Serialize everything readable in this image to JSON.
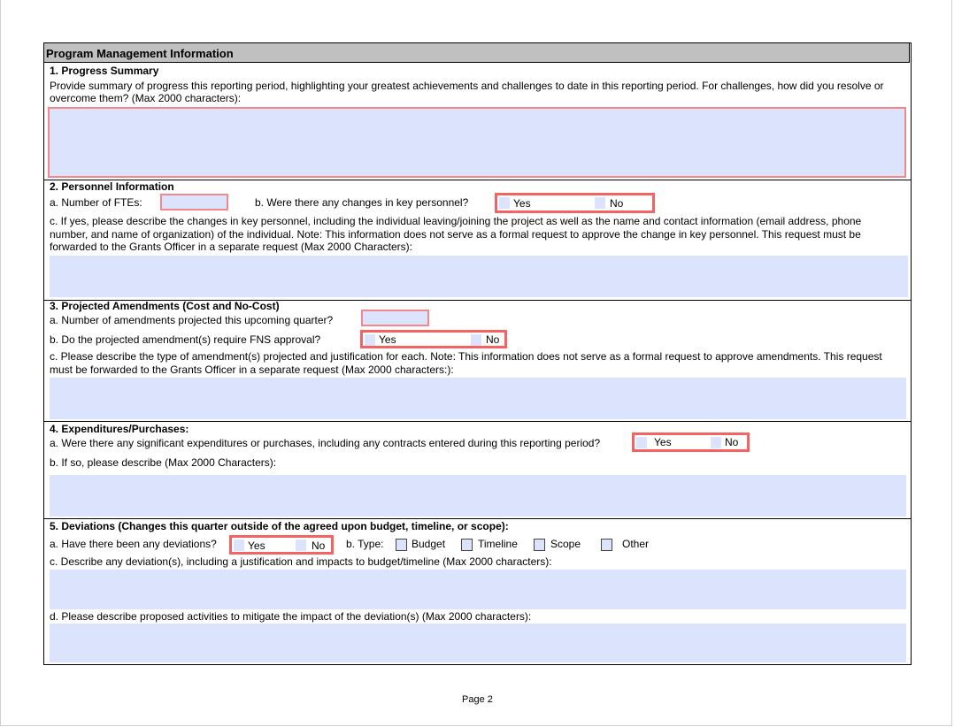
{
  "header": {
    "title": "Program Management Information"
  },
  "s1": {
    "title": "1. Progress Summary",
    "text1": "Provide summary of progress this reporting period, highlighting your greatest achievements and challenges to date in this reporting period. For challenges, how did you resolve or",
    "text2": "overcome them? (Max 2000 characters):"
  },
  "s2": {
    "title": "2. Personnel Information",
    "a": "a. Number of FTEs:",
    "b": "b. Were there any changes in key personnel?",
    "yes": "Yes",
    "no": "No",
    "c1": "c. If yes, please describe the changes in key personnel, including the individual leaving/joining the project as well as the name and contact information (email address, phone",
    "c2": "number, and name of organization) of the individual. Note: This information does not serve as a formal request to approve the change in key personnel. This request must be",
    "c3": "forwarded to the Grants Officer in a separate request (Max 2000 Characters):"
  },
  "s3": {
    "title": "3. Projected Amendments (Cost and No-Cost)",
    "a": "a. Number of amendments projected this upcoming quarter?",
    "b": "b. Do the projected amendment(s) require FNS approval?",
    "yes": "Yes",
    "no": "No",
    "c1": "c. Please describe the type of amendment(s) projected and justification for each. Note: This information does not serve as a formal request to approve amendments. This request",
    "c2": "must be forwarded to the Grants Officer in a separate request (Max 2000 characters:):"
  },
  "s4": {
    "title": "4. Expenditures/Purchases:",
    "a": "a. Were there any significant expenditures or purchases, including any contracts entered during this reporting period?",
    "yes": "Yes",
    "no": "No",
    "b": "b. If so, please describe (Max 2000 Characters):"
  },
  "s5": {
    "title": "5. Deviations (Changes this quarter outside of the agreed upon budget, timeline, or scope):",
    "a": "a. Have there been any deviations?",
    "yes": "Yes",
    "no": "No",
    "type": "b. Type:",
    "types": [
      "Budget",
      "Timeline",
      "Scope",
      "Other"
    ],
    "c": "c. Describe any deviation(s), including a justification and impacts to budget/timeline (Max 2000 characters):",
    "d": "d. Please describe proposed activities to mitigate the impact of the deviation(s) (Max 2000 characters):"
  },
  "footer": {
    "page": "Page 2"
  }
}
